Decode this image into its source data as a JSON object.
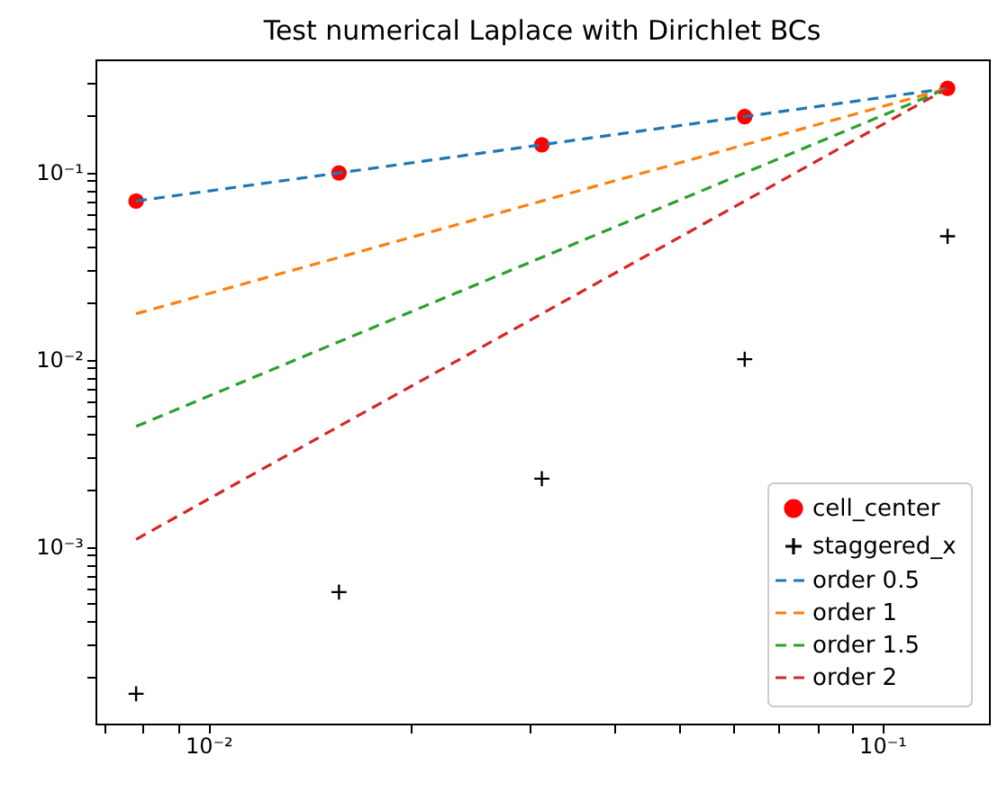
{
  "chart_data": {
    "type": "scatter",
    "title": "Test numerical Laplace with Dirichlet BCs",
    "x": [
      0.0078125,
      0.015625,
      0.03125,
      0.0625,
      0.125
    ],
    "series": [
      {
        "name": "cell_center",
        "type": "scatter",
        "marker": "circle",
        "color": "#ff0000",
        "values": [
          0.07,
          0.099,
          0.14,
          0.198,
          0.28
        ]
      },
      {
        "name": "staggered_x",
        "type": "scatter",
        "marker": "cross",
        "color": "#000000",
        "values": [
          0.000163,
          0.00057,
          0.0023,
          0.01,
          0.0454
        ]
      },
      {
        "name": "order 0.5",
        "type": "line",
        "line_style": "dashed",
        "color": "#1f77b4",
        "values": [
          0.07,
          0.099,
          0.14,
          0.198,
          0.28
        ]
      },
      {
        "name": "order 1",
        "type": "line",
        "line_style": "dashed",
        "color": "#ff7f0e",
        "values": [
          0.0175,
          0.035,
          0.07,
          0.14,
          0.28
        ]
      },
      {
        "name": "order 1.5",
        "type": "line",
        "line_style": "dashed",
        "color": "#2ca02c",
        "values": [
          0.004375,
          0.0124,
          0.035,
          0.099,
          0.28
        ]
      },
      {
        "name": "order 2",
        "type": "line",
        "line_style": "dashed",
        "color": "#d62728",
        "values": [
          0.00109,
          0.00438,
          0.0175,
          0.07,
          0.28
        ]
      }
    ],
    "log": "xy",
    "xlim": [
      0.0068,
      0.144
    ],
    "ylim": [
      0.000113,
      0.4
    ],
    "xticks": [
      {
        "value": 0.007,
        "label": null
      },
      {
        "value": 0.008,
        "label": null
      },
      {
        "value": 0.009,
        "label": null
      },
      {
        "value": 0.01,
        "label": "10⁻²"
      },
      {
        "value": 0.02,
        "label": null
      },
      {
        "value": 0.03,
        "label": null
      },
      {
        "value": 0.04,
        "label": null
      },
      {
        "value": 0.05,
        "label": null
      },
      {
        "value": 0.06,
        "label": null
      },
      {
        "value": 0.07,
        "label": null
      },
      {
        "value": 0.08,
        "label": null
      },
      {
        "value": 0.09,
        "label": null
      },
      {
        "value": 0.1,
        "label": "10⁻¹"
      }
    ],
    "yticks": [
      {
        "value": 0.0002,
        "label": null
      },
      {
        "value": 0.0003,
        "label": null
      },
      {
        "value": 0.0004,
        "label": null
      },
      {
        "value": 0.0005,
        "label": null
      },
      {
        "value": 0.0006,
        "label": null
      },
      {
        "value": 0.0007,
        "label": null
      },
      {
        "value": 0.0008,
        "label": null
      },
      {
        "value": 0.0009,
        "label": null
      },
      {
        "value": 0.001,
        "label": "10⁻³"
      },
      {
        "value": 0.002,
        "label": null
      },
      {
        "value": 0.003,
        "label": null
      },
      {
        "value": 0.004,
        "label": null
      },
      {
        "value": 0.005,
        "label": null
      },
      {
        "value": 0.006,
        "label": null
      },
      {
        "value": 0.007,
        "label": null
      },
      {
        "value": 0.008,
        "label": null
      },
      {
        "value": 0.009,
        "label": null
      },
      {
        "value": 0.01,
        "label": "10⁻²"
      },
      {
        "value": 0.02,
        "label": null
      },
      {
        "value": 0.03,
        "label": null
      },
      {
        "value": 0.04,
        "label": null
      },
      {
        "value": 0.05,
        "label": null
      },
      {
        "value": 0.06,
        "label": null
      },
      {
        "value": 0.07,
        "label": null
      },
      {
        "value": 0.08,
        "label": null
      },
      {
        "value": 0.09,
        "label": null
      },
      {
        "value": 0.1,
        "label": "10⁻¹"
      },
      {
        "value": 0.2,
        "label": null
      },
      {
        "value": 0.3,
        "label": null
      }
    ],
    "legend": "bottom right"
  }
}
